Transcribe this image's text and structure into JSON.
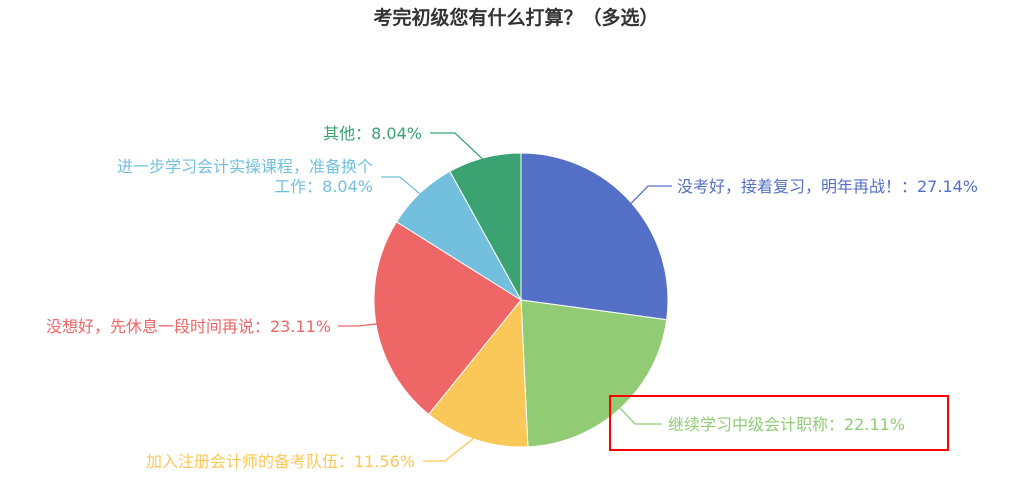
{
  "chart_data": {
    "type": "pie",
    "title": "考完初级您有什么打算？（多选）",
    "slices": [
      {
        "label": "没考好，接着复习，明年再战！",
        "value": 27.14,
        "display": "没考好，接着复习，明年再战！：27.14%",
        "color": "#5470c6"
      },
      {
        "label": "继续学习中级会计职称",
        "value": 22.11,
        "display": "继续学习中级会计职称：22.11%",
        "color": "#91cc75",
        "highlighted": true
      },
      {
        "label": "加入注册会计师的备考队伍",
        "value": 11.56,
        "display": "加入注册会计师的备考队伍：11.56%",
        "color": "#fac858"
      },
      {
        "label": "没想好，先休息一段时间再说",
        "value": 23.11,
        "display": "没想好，先休息一段时间再说：23.11%",
        "color": "#ee6666"
      },
      {
        "label": "进一步学习会计实操课程，准备换个工作",
        "value": 8.04,
        "display_lines": [
          "进一步学习会计实操课程，准备换个",
          "工作：8.04%"
        ],
        "color": "#73c0de"
      },
      {
        "label": "其他",
        "value": 8.04,
        "display": "其他：8.04%",
        "color": "#3ba272"
      }
    ],
    "highlight_color": "#ff0000"
  }
}
